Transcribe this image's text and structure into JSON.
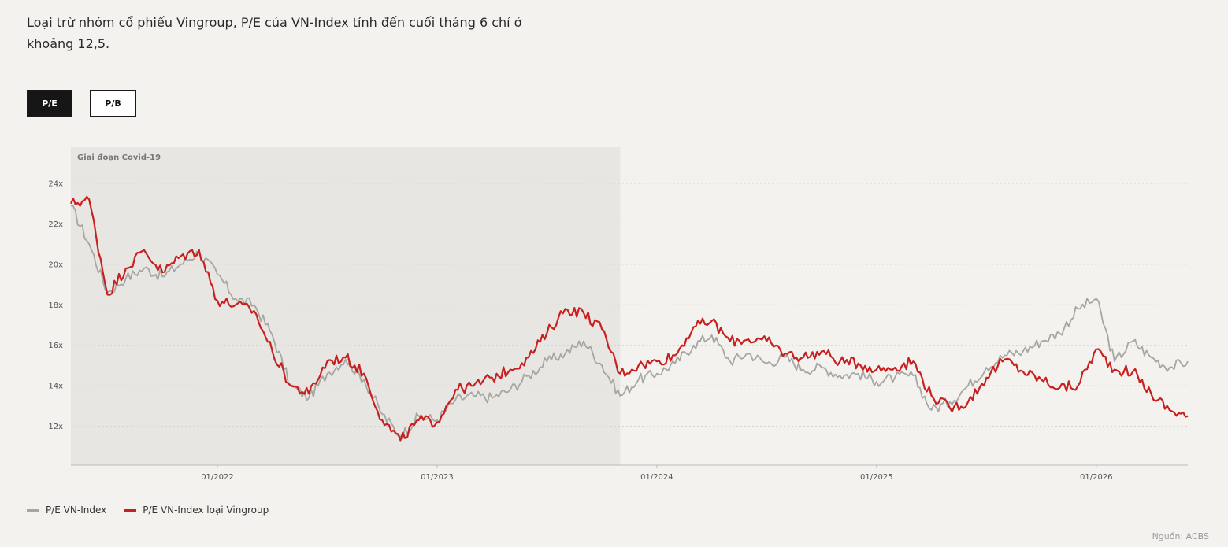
{
  "intro": {
    "text": "Loại trừ nhóm cổ phiếu Vingroup, P/E của VN-Index tính đến cuối tháng 6 chỉ ở khoảng 12,5."
  },
  "tabs": [
    {
      "label": "P/E",
      "active": true
    },
    {
      "label": "P/B",
      "active": false
    }
  ],
  "source": "Nguồn: ACBS",
  "colors": {
    "gray": "#a6a6a2",
    "red": "#c8201f",
    "shade": "#e8e6e2"
  },
  "chart_data": {
    "type": "line",
    "title": "",
    "xlabel": "",
    "ylabel": "",
    "x_range": [
      "2021-05",
      "2026-06"
    ],
    "ylim": [
      10,
      25.5
    ],
    "y_ticks": [
      12,
      14,
      16,
      18,
      20,
      22,
      24
    ],
    "y_tick_labels": [
      "12x",
      "14x",
      "16x",
      "18x",
      "20x",
      "22x",
      "24x"
    ],
    "x_ticks": [
      "2022-01",
      "2023-01",
      "2024-01",
      "2025-01",
      "2026-01"
    ],
    "x_tick_labels": [
      "01/2022",
      "01/2023",
      "01/2024",
      "01/2025",
      "01/2026"
    ],
    "grid": "horizontal dotted",
    "legend_position": "bottom-left",
    "annotation": {
      "label": "Giai đoạn Covid-19",
      "from": "2021-05",
      "to": "2023-11"
    },
    "x": [
      "2021-05-01",
      "2021-06-01",
      "2021-07-01",
      "2021-08-01",
      "2021-09-01",
      "2021-10-01",
      "2021-11-01",
      "2021-12-01",
      "2022-01-01",
      "2022-02-01",
      "2022-03-01",
      "2022-04-01",
      "2022-05-01",
      "2022-06-01",
      "2022-07-01",
      "2022-08-01",
      "2022-09-01",
      "2022-10-01",
      "2022-11-01",
      "2022-12-01",
      "2023-01-01",
      "2023-02-01",
      "2023-03-01",
      "2023-04-01",
      "2023-05-01",
      "2023-06-01",
      "2023-07-01",
      "2023-08-01",
      "2023-09-01",
      "2023-10-01",
      "2023-11-01",
      "2023-12-01",
      "2024-01-01",
      "2024-02-01",
      "2024-03-01",
      "2024-04-01",
      "2024-05-01",
      "2024-06-01",
      "2024-07-01",
      "2024-08-01",
      "2024-09-01",
      "2024-10-01",
      "2024-11-01",
      "2024-12-01",
      "2025-01-01",
      "2025-02-01",
      "2025-03-01",
      "2025-04-01",
      "2025-05-01",
      "2025-06-01",
      "2025-07-01",
      "2025-08-01",
      "2025-09-01",
      "2025-10-01",
      "2025-11-01",
      "2025-12-01",
      "2026-01-01",
      "2026-02-01",
      "2026-03-01",
      "2026-04-01",
      "2026-05-01",
      "2026-06-01"
    ],
    "series": [
      {
        "name": "P/E VN-Index",
        "color": "#a6a6a2",
        "values": [
          22.9,
          21.0,
          18.6,
          19.3,
          19.8,
          19.4,
          20.0,
          20.6,
          19.5,
          18.3,
          18.0,
          16.5,
          14.0,
          13.4,
          14.6,
          15.3,
          14.3,
          12.6,
          11.5,
          12.5,
          12.3,
          13.3,
          13.5,
          13.4,
          13.8,
          14.5,
          15.2,
          15.6,
          16.2,
          15.0,
          13.5,
          14.3,
          14.6,
          15.1,
          16.0,
          16.5,
          15.2,
          15.6,
          15.1,
          15.4,
          14.8,
          14.9,
          14.5,
          14.6,
          14.2,
          14.4,
          14.5,
          12.8,
          13.2,
          14.0,
          14.9,
          15.5,
          15.7,
          16.2,
          16.6,
          17.8,
          18.3,
          15.2,
          16.2,
          15.4,
          14.9,
          15.2
        ]
      },
      {
        "name": "P/E VN-Index loại Vingroup",
        "color": "#c8201f",
        "values": [
          23.0,
          23.2,
          18.5,
          19.8,
          20.7,
          19.6,
          20.4,
          20.7,
          18.2,
          18.0,
          17.7,
          15.7,
          14.0,
          13.6,
          15.2,
          15.4,
          14.6,
          12.3,
          11.3,
          12.3,
          12.2,
          13.8,
          14.0,
          14.4,
          14.8,
          15.4,
          16.6,
          17.8,
          17.6,
          16.8,
          14.6,
          15.0,
          15.2,
          15.5,
          16.9,
          17.2,
          16.2,
          16.3,
          16.2,
          15.6,
          15.4,
          15.7,
          15.2,
          15.1,
          14.8,
          14.9,
          15.2,
          13.5,
          12.9,
          13.2,
          14.4,
          15.3,
          14.7,
          14.3,
          13.9,
          14.0,
          15.8,
          14.8,
          14.7,
          13.6,
          12.8,
          12.5
        ]
      }
    ]
  }
}
